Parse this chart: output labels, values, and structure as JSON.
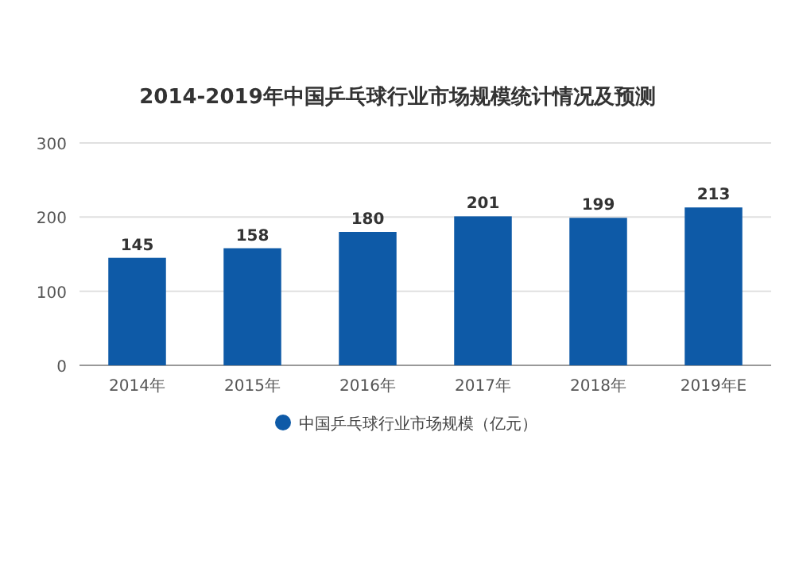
{
  "chart_data": {
    "type": "bar",
    "title": "2014-2019年中国乒乓球行业市场规模统计情况及预测",
    "categories": [
      "2014年",
      "2015年",
      "2016年",
      "2017年",
      "2018年",
      "2019年E"
    ],
    "series": [
      {
        "name": "中国乒乓球行业市场规模（亿元）",
        "color": "#0e5aa7",
        "values": [
          145,
          158,
          180,
          201,
          199,
          213
        ]
      }
    ],
    "ylim": [
      0,
      300
    ],
    "yticks": [
      0,
      100,
      200,
      300
    ],
    "grid": "y",
    "legend": "bottom",
    "data_labels": true
  }
}
